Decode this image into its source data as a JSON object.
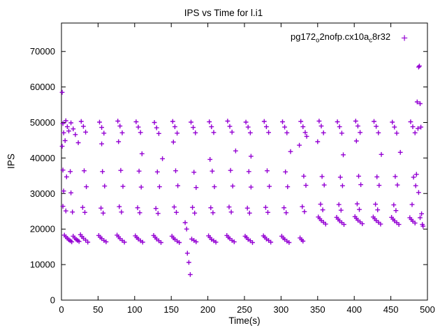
{
  "legend": {
    "label_plain": "pg172o2nofp.cx10ac8r32",
    "label_segments": [
      {
        "text": "pg172"
      },
      {
        "sub": "o"
      },
      {
        "text": "2nofp.cx10a"
      },
      {
        "sub": "c"
      },
      {
        "text": "8r32"
      }
    ],
    "marker": "+"
  },
  "colors": {
    "series": "#9400d3",
    "axis": "#000000",
    "background": "#ffffff"
  },
  "chart_data": {
    "type": "scatter",
    "title": "IPS vs Time for l.i1",
    "xlabel": "Time(s)",
    "ylabel": "IPS",
    "xlim": [
      0,
      500
    ],
    "ylim": [
      0,
      78000
    ],
    "xticks": [
      0,
      50,
      100,
      150,
      200,
      250,
      300,
      350,
      400,
      450,
      500
    ],
    "yticks": [
      0,
      10000,
      20000,
      30000,
      40000,
      50000,
      60000,
      70000
    ],
    "grid": false,
    "legend_position": "top-right-inside",
    "series": [
      {
        "name": "pg172o2nofp.cx10ac8r32",
        "marker": "+",
        "color": "#9400d3",
        "points": [
          [
            1,
            58500
          ],
          [
            1,
            43300
          ],
          [
            2,
            49700
          ],
          [
            3,
            47100
          ],
          [
            5,
            44900
          ],
          [
            6,
            50500
          ],
          [
            8,
            48800
          ],
          [
            10,
            47600
          ],
          [
            2,
            36600
          ],
          [
            7,
            34700
          ],
          [
            12,
            36200
          ],
          [
            3,
            30700
          ],
          [
            13,
            30200
          ],
          [
            2,
            26400
          ],
          [
            6,
            25100
          ],
          [
            15,
            24800
          ],
          [
            4,
            18300
          ],
          [
            6,
            17800
          ],
          [
            8,
            17400
          ],
          [
            10,
            17000
          ],
          [
            12,
            16700
          ],
          [
            14,
            16400
          ],
          [
            16,
            18000
          ],
          [
            18,
            17500
          ],
          [
            20,
            17100
          ],
          [
            22,
            16800
          ],
          [
            24,
            16500
          ],
          [
            13,
            49900
          ],
          [
            16,
            48200
          ],
          [
            19,
            46600
          ],
          [
            23,
            44300
          ],
          [
            27,
            50300
          ],
          [
            30,
            48900
          ],
          [
            33,
            47300
          ],
          [
            31,
            36400
          ],
          [
            34,
            31900
          ],
          [
            29,
            26100
          ],
          [
            32,
            24700
          ],
          [
            26,
            18400
          ],
          [
            28,
            17900
          ],
          [
            30,
            17400
          ],
          [
            33,
            16900
          ],
          [
            36,
            16300
          ],
          [
            52,
            50100
          ],
          [
            55,
            48600
          ],
          [
            58,
            47000
          ],
          [
            55,
            44000
          ],
          [
            56,
            36200
          ],
          [
            59,
            32100
          ],
          [
            54,
            25900
          ],
          [
            57,
            24500
          ],
          [
            51,
            18200
          ],
          [
            53,
            17700
          ],
          [
            55,
            17300
          ],
          [
            58,
            16800
          ],
          [
            61,
            16400
          ],
          [
            77,
            50400
          ],
          [
            80,
            49000
          ],
          [
            83,
            47100
          ],
          [
            78,
            44600
          ],
          [
            81,
            36500
          ],
          [
            84,
            32000
          ],
          [
            79,
            26300
          ],
          [
            82,
            24800
          ],
          [
            76,
            18300
          ],
          [
            78,
            17800
          ],
          [
            80,
            17300
          ],
          [
            83,
            16800
          ],
          [
            86,
            16300
          ],
          [
            102,
            50200
          ],
          [
            105,
            48700
          ],
          [
            108,
            47200
          ],
          [
            110,
            41200
          ],
          [
            106,
            36300
          ],
          [
            109,
            31800
          ],
          [
            104,
            26000
          ],
          [
            107,
            24600
          ],
          [
            101,
            18100
          ],
          [
            103,
            17600
          ],
          [
            105,
            17200
          ],
          [
            108,
            16700
          ],
          [
            111,
            16300
          ],
          [
            127,
            50000
          ],
          [
            130,
            48500
          ],
          [
            133,
            46900
          ],
          [
            138,
            39800
          ],
          [
            131,
            36100
          ],
          [
            134,
            31900
          ],
          [
            129,
            25800
          ],
          [
            132,
            24400
          ],
          [
            126,
            18200
          ],
          [
            128,
            17700
          ],
          [
            130,
            17200
          ],
          [
            133,
            16700
          ],
          [
            136,
            16200
          ],
          [
            152,
            50300
          ],
          [
            155,
            48800
          ],
          [
            158,
            47000
          ],
          [
            153,
            44500
          ],
          [
            156,
            36400
          ],
          [
            159,
            32200
          ],
          [
            154,
            26200
          ],
          [
            157,
            24700
          ],
          [
            151,
            18000
          ],
          [
            153,
            17500
          ],
          [
            155,
            17100
          ],
          [
            158,
            16600
          ],
          [
            161,
            16200
          ],
          [
            177,
            50100
          ],
          [
            180,
            48600
          ],
          [
            183,
            47100
          ],
          [
            181,
            36000
          ],
          [
            184,
            31700
          ],
          [
            179,
            26100
          ],
          [
            182,
            24500
          ],
          [
            172,
            13200
          ],
          [
            174,
            10600
          ],
          [
            176,
            7200
          ],
          [
            171,
            20000
          ],
          [
            169,
            21800
          ],
          [
            178,
            17200
          ],
          [
            181,
            16800
          ],
          [
            184,
            16400
          ],
          [
            202,
            50200
          ],
          [
            205,
            48800
          ],
          [
            208,
            47200
          ],
          [
            203,
            39600
          ],
          [
            206,
            36300
          ],
          [
            209,
            31900
          ],
          [
            204,
            26000
          ],
          [
            207,
            24600
          ],
          [
            201,
            18100
          ],
          [
            203,
            17600
          ],
          [
            205,
            17100
          ],
          [
            208,
            16700
          ],
          [
            211,
            16300
          ],
          [
            227,
            50400
          ],
          [
            230,
            48900
          ],
          [
            233,
            47300
          ],
          [
            238,
            42000
          ],
          [
            231,
            36500
          ],
          [
            234,
            32100
          ],
          [
            229,
            26200
          ],
          [
            232,
            24800
          ],
          [
            226,
            18200
          ],
          [
            228,
            17700
          ],
          [
            230,
            17300
          ],
          [
            233,
            16800
          ],
          [
            236,
            16400
          ],
          [
            252,
            50100
          ],
          [
            255,
            48700
          ],
          [
            258,
            47100
          ],
          [
            259,
            40500
          ],
          [
            256,
            36200
          ],
          [
            259,
            31800
          ],
          [
            254,
            25900
          ],
          [
            257,
            24500
          ],
          [
            251,
            18000
          ],
          [
            253,
            17600
          ],
          [
            255,
            17100
          ],
          [
            258,
            16700
          ],
          [
            261,
            16200
          ],
          [
            277,
            50300
          ],
          [
            280,
            48800
          ],
          [
            283,
            47200
          ],
          [
            281,
            36400
          ],
          [
            284,
            32000
          ],
          [
            279,
            26100
          ],
          [
            282,
            24700
          ],
          [
            276,
            18100
          ],
          [
            278,
            17700
          ],
          [
            280,
            17200
          ],
          [
            283,
            16800
          ],
          [
            286,
            16300
          ],
          [
            302,
            50200
          ],
          [
            305,
            48700
          ],
          [
            308,
            47100
          ],
          [
            313,
            41800
          ],
          [
            306,
            36100
          ],
          [
            309,
            31900
          ],
          [
            304,
            26000
          ],
          [
            307,
            24600
          ],
          [
            301,
            18000
          ],
          [
            303,
            17500
          ],
          [
            305,
            17100
          ],
          [
            308,
            16600
          ],
          [
            311,
            16200
          ],
          [
            327,
            50300
          ],
          [
            330,
            48800
          ],
          [
            333,
            47200
          ],
          [
            325,
            43600
          ],
          [
            335,
            46100
          ],
          [
            331,
            34900
          ],
          [
            334,
            32300
          ],
          [
            329,
            26300
          ],
          [
            332,
            24900
          ],
          [
            326,
            17500
          ],
          [
            328,
            17000
          ],
          [
            330,
            16600
          ],
          [
            352,
            50400
          ],
          [
            355,
            49000
          ],
          [
            358,
            47100
          ],
          [
            350,
            44600
          ],
          [
            356,
            34800
          ],
          [
            359,
            32400
          ],
          [
            354,
            27000
          ],
          [
            357,
            25400
          ],
          [
            351,
            23400
          ],
          [
            353,
            22900
          ],
          [
            355,
            22400
          ],
          [
            358,
            21900
          ],
          [
            361,
            21400
          ],
          [
            377,
            50200
          ],
          [
            380,
            48800
          ],
          [
            383,
            47000
          ],
          [
            385,
            40900
          ],
          [
            381,
            34600
          ],
          [
            384,
            32200
          ],
          [
            379,
            26900
          ],
          [
            382,
            25300
          ],
          [
            376,
            23300
          ],
          [
            378,
            22800
          ],
          [
            380,
            22300
          ],
          [
            383,
            21800
          ],
          [
            386,
            21300
          ],
          [
            402,
            50400
          ],
          [
            405,
            49000
          ],
          [
            408,
            47200
          ],
          [
            403,
            44800
          ],
          [
            406,
            34900
          ],
          [
            409,
            32500
          ],
          [
            404,
            27100
          ],
          [
            407,
            25500
          ],
          [
            401,
            23500
          ],
          [
            403,
            23000
          ],
          [
            405,
            22500
          ],
          [
            408,
            22000
          ],
          [
            411,
            21500
          ],
          [
            427,
            50300
          ],
          [
            430,
            48900
          ],
          [
            433,
            47100
          ],
          [
            437,
            41000
          ],
          [
            431,
            34700
          ],
          [
            434,
            32300
          ],
          [
            429,
            27000
          ],
          [
            432,
            25400
          ],
          [
            426,
            23400
          ],
          [
            428,
            22900
          ],
          [
            430,
            22400
          ],
          [
            433,
            21900
          ],
          [
            436,
            21400
          ],
          [
            452,
            50100
          ],
          [
            455,
            48700
          ],
          [
            458,
            47000
          ],
          [
            463,
            41600
          ],
          [
            456,
            34800
          ],
          [
            459,
            32400
          ],
          [
            454,
            26800
          ],
          [
            457,
            25200
          ],
          [
            451,
            23300
          ],
          [
            453,
            22800
          ],
          [
            455,
            22300
          ],
          [
            458,
            21800
          ],
          [
            461,
            21300
          ],
          [
            477,
            50200
          ],
          [
            480,
            48800
          ],
          [
            483,
            47100
          ],
          [
            481,
            34600
          ],
          [
            484,
            32200
          ],
          [
            479,
            26900
          ],
          [
            476,
            23200
          ],
          [
            478,
            22700
          ],
          [
            480,
            22200
          ],
          [
            483,
            21700
          ],
          [
            486,
            55800
          ],
          [
            488,
            65600
          ],
          [
            489,
            65900
          ],
          [
            490,
            55300
          ],
          [
            487,
            48300
          ],
          [
            491,
            48700
          ],
          [
            485,
            35400
          ],
          [
            488,
            30300
          ],
          [
            492,
            24300
          ],
          [
            490,
            23200
          ],
          [
            493,
            21300
          ],
          [
            494,
            20800
          ]
        ]
      }
    ]
  }
}
